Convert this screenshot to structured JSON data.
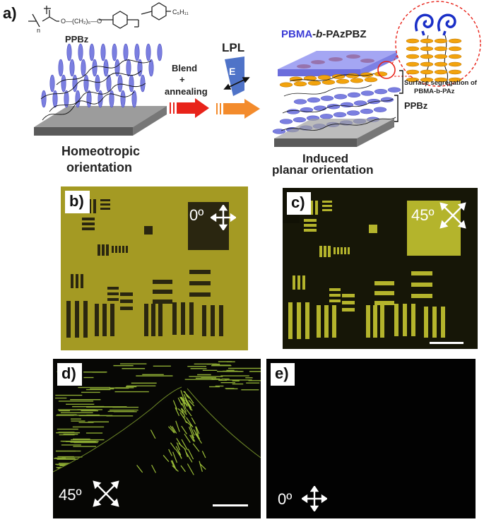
{
  "panel_a": {
    "label": "a)",
    "polymer_name": "PPBz",
    "chem": {
      "n": "n",
      "chain": "O—(CH₂)₆—O",
      "tail": "C₅H₁₁"
    },
    "left_caption": [
      "Homeotropic",
      "orientation"
    ],
    "blend_label": [
      "Blend",
      "+",
      "annealing"
    ],
    "lpl_label": "LPL",
    "e_label": "E",
    "top_label": {
      "part1": "PBMA",
      "part2": "-b-",
      "part3": "PAzPBZ"
    },
    "segregation_label": [
      "Surface segregation of",
      "PBMA-b-PAz"
    ],
    "layer_label": "PPBz",
    "right_caption": [
      "Induced",
      "planar orientation"
    ],
    "colors": {
      "mesogen_blue": "#7b7fe0",
      "mesogen_orange": "#f2a30d",
      "arrow_red": "#e8231a",
      "arrow_orange": "#f38b2c",
      "film_blue": "#8f90ee",
      "coil_blue": "#1a2fc7"
    }
  },
  "panel_b": {
    "label": "b)",
    "angle": "0º",
    "bg_color": "#a49a23"
  },
  "panel_c": {
    "label": "c)",
    "angle": "45º",
    "bg_color": "#111105"
  },
  "panel_d": {
    "label": "d)",
    "angle": "45º"
  },
  "panel_e": {
    "label": "e)",
    "angle": "0º"
  }
}
